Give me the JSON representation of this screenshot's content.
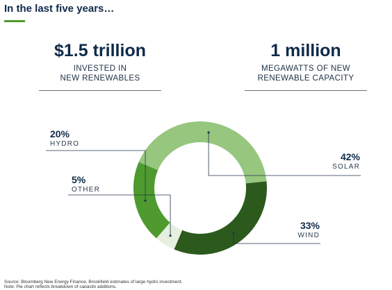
{
  "headline": "In the last five years…",
  "stats": [
    {
      "value": "$1.5 trillion",
      "caption": "INVESTED IN\nNEW RENEWABLES"
    },
    {
      "value": "1 million",
      "caption": "MEGAWATTS OF NEW\nRENEWABLE CAPACITY"
    }
  ],
  "chart_data": {
    "type": "pie",
    "donut": true,
    "slices": [
      {
        "label": "SOLAR",
        "percent_label": "42%",
        "value": 42,
        "color": "#97c67f"
      },
      {
        "label": "WIND",
        "percent_label": "33%",
        "value": 33,
        "color": "#2c5a1c"
      },
      {
        "label": "OTHER",
        "percent_label": "5%",
        "value": 5,
        "color": "#e6efe0"
      },
      {
        "label": "HYDRO",
        "percent_label": "20%",
        "value": 20,
        "color": "#4e9a2f"
      }
    ]
  },
  "footer": {
    "source": "Source: Bloomberg New Energy Finance, Brookfield estimates of large hydro investment.",
    "note": "Note: Pie chart reflects breakdown of capacity additions."
  }
}
